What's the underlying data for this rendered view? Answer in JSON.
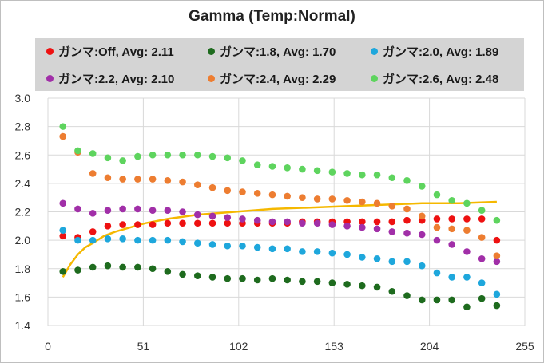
{
  "chart_data": {
    "type": "scatter",
    "title": "Gamma (Temp:Normal)",
    "xlabel": "",
    "ylabel": "",
    "xlim": [
      0,
      255
    ],
    "ylim": [
      1.4,
      3.0
    ],
    "x_ticks": [
      0,
      51,
      102,
      153,
      204,
      255
    ],
    "y_ticks": [
      "1.4",
      "1.6",
      "1.8",
      "2.0",
      "2.2",
      "2.4",
      "2.6",
      "2.8",
      "3.0"
    ],
    "grid": true,
    "legend_position": "top",
    "x": [
      8,
      16,
      24,
      32,
      40,
      48,
      56,
      64,
      72,
      80,
      88,
      96,
      104,
      112,
      120,
      128,
      136,
      144,
      152,
      160,
      168,
      176,
      184,
      192,
      200,
      208,
      216,
      224,
      232,
      240
    ],
    "series": [
      {
        "name": "ガンマ:Off, Avg: 2.11",
        "color": "#ee1111",
        "values": [
          2.03,
          2.02,
          2.06,
          2.1,
          2.11,
          2.11,
          2.11,
          2.12,
          2.12,
          2.12,
          2.12,
          2.12,
          2.12,
          2.12,
          2.12,
          2.12,
          2.13,
          2.13,
          2.13,
          2.13,
          2.13,
          2.13,
          2.13,
          2.14,
          2.14,
          2.15,
          2.15,
          2.15,
          2.15,
          2.0
        ]
      },
      {
        "name": "ガンマ:1.8, Avg: 1.70",
        "color": "#1e6b1e",
        "values": [
          1.78,
          1.79,
          1.81,
          1.82,
          1.81,
          1.81,
          1.8,
          1.78,
          1.76,
          1.75,
          1.74,
          1.73,
          1.73,
          1.72,
          1.73,
          1.72,
          1.71,
          1.71,
          1.7,
          1.69,
          1.68,
          1.67,
          1.64,
          1.61,
          1.58,
          1.58,
          1.58,
          1.53,
          1.59,
          1.54
        ]
      },
      {
        "name": "ガンマ:2.0, Avg: 1.89",
        "color": "#1ea7dc",
        "values": [
          2.07,
          2.0,
          2.0,
          2.01,
          2.01,
          2.0,
          2.0,
          2.0,
          1.99,
          1.98,
          1.97,
          1.96,
          1.96,
          1.95,
          1.94,
          1.94,
          1.92,
          1.92,
          1.91,
          1.9,
          1.88,
          1.87,
          1.85,
          1.85,
          1.82,
          1.77,
          1.74,
          1.74,
          1.7,
          1.62
        ]
      },
      {
        "name": "ガンマ:2.2, Avg: 2.10",
        "color": "#a12fa8",
        "values": [
          2.26,
          2.22,
          2.19,
          2.21,
          2.22,
          2.22,
          2.21,
          2.21,
          2.2,
          2.18,
          2.17,
          2.16,
          2.15,
          2.14,
          2.13,
          2.13,
          2.12,
          2.12,
          2.11,
          2.1,
          2.09,
          2.08,
          2.06,
          2.05,
          2.04,
          2.0,
          1.97,
          1.92,
          1.87,
          1.85
        ]
      },
      {
        "name": "ガンマ:2.4, Avg: 2.29",
        "color": "#ed7d31",
        "values": [
          2.73,
          2.62,
          2.47,
          2.44,
          2.43,
          2.43,
          2.43,
          2.42,
          2.41,
          2.39,
          2.37,
          2.35,
          2.34,
          2.33,
          2.32,
          2.31,
          2.3,
          2.29,
          2.29,
          2.28,
          2.27,
          2.26,
          2.24,
          2.22,
          2.17,
          2.09,
          2.08,
          2.07,
          2.02,
          1.89
        ]
      },
      {
        "name": "ガンマ:2.6, Avg: 2.48",
        "color": "#5ed45e",
        "values": [
          2.8,
          2.63,
          2.61,
          2.58,
          2.56,
          2.59,
          2.6,
          2.6,
          2.6,
          2.6,
          2.59,
          2.58,
          2.56,
          2.53,
          2.52,
          2.51,
          2.5,
          2.49,
          2.48,
          2.47,
          2.46,
          2.46,
          2.44,
          2.42,
          2.38,
          2.32,
          2.28,
          2.26,
          2.21,
          2.14
        ]
      }
    ],
    "reference_curve": {
      "color": "#f5b800",
      "x": [
        8,
        12,
        16,
        20,
        24,
        30,
        36,
        44,
        52,
        64,
        80,
        100,
        120,
        140,
        160,
        180,
        200,
        220,
        240
      ],
      "values": [
        1.74,
        1.83,
        1.9,
        1.95,
        1.98,
        2.03,
        2.06,
        2.09,
        2.12,
        2.15,
        2.18,
        2.2,
        2.22,
        2.23,
        2.24,
        2.25,
        2.26,
        2.26,
        2.27
      ]
    }
  }
}
